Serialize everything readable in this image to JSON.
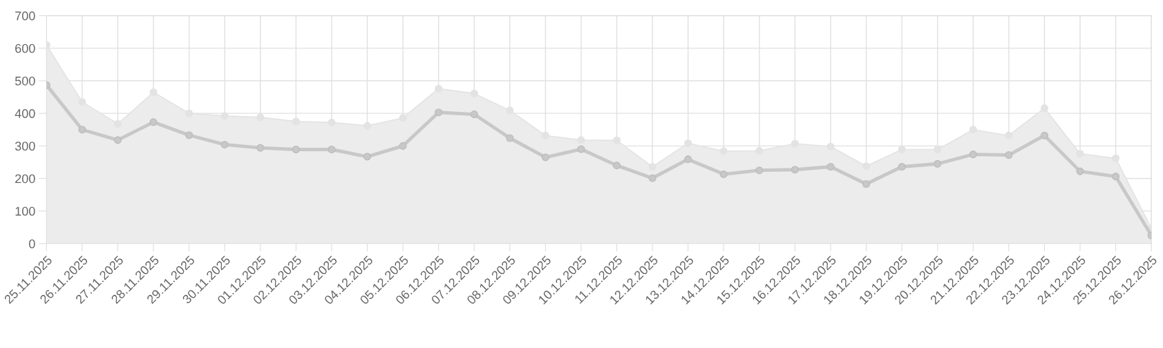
{
  "chart_data": {
    "type": "line",
    "categories": [
      "25.11.2025",
      "26.11.2025",
      "27.11.2025",
      "28.11.2025",
      "29.11.2025",
      "30.11.2025",
      "01.12.2025",
      "02.12.2025",
      "03.12.2025",
      "04.12.2025",
      "05.12.2025",
      "06.12.2025",
      "07.12.2025",
      "08.12.2025",
      "09.12.2025",
      "10.12.2025",
      "11.12.2025",
      "12.12.2025",
      "13.12.2025",
      "14.12.2025",
      "15.12.2025",
      "16.12.2025",
      "17.12.2025",
      "18.12.2025",
      "19.12.2025",
      "20.12.2025",
      "21.12.2025",
      "22.12.2025",
      "23.12.2025",
      "24.12.2025",
      "25.12.2025",
      "26.12.2025"
    ],
    "series": [
      {
        "type": "area",
        "color": "#e3e3e3",
        "values": [
          610,
          435,
          368,
          465,
          400,
          392,
          388,
          375,
          372,
          362,
          386,
          476,
          461,
          409,
          332,
          318,
          317,
          236,
          308,
          284,
          285,
          307,
          298,
          238,
          289,
          289,
          350,
          332,
          416,
          276,
          262,
          47
        ]
      },
      {
        "color": "#c8c8c8",
        "values": [
          487,
          350,
          318,
          373,
          333,
          304,
          294,
          289,
          289,
          267,
          300,
          403,
          397,
          324,
          265,
          290,
          240,
          201,
          259,
          213,
          225,
          227,
          236,
          183,
          236,
          245,
          274,
          272,
          332,
          222,
          206,
          25
        ]
      }
    ],
    "ylim": [
      0,
      700
    ],
    "yticks": [
      0,
      100,
      200,
      300,
      400,
      500,
      600,
      700
    ],
    "grid": true,
    "marker": "circle",
    "line_style": "solid",
    "legend": false
  }
}
